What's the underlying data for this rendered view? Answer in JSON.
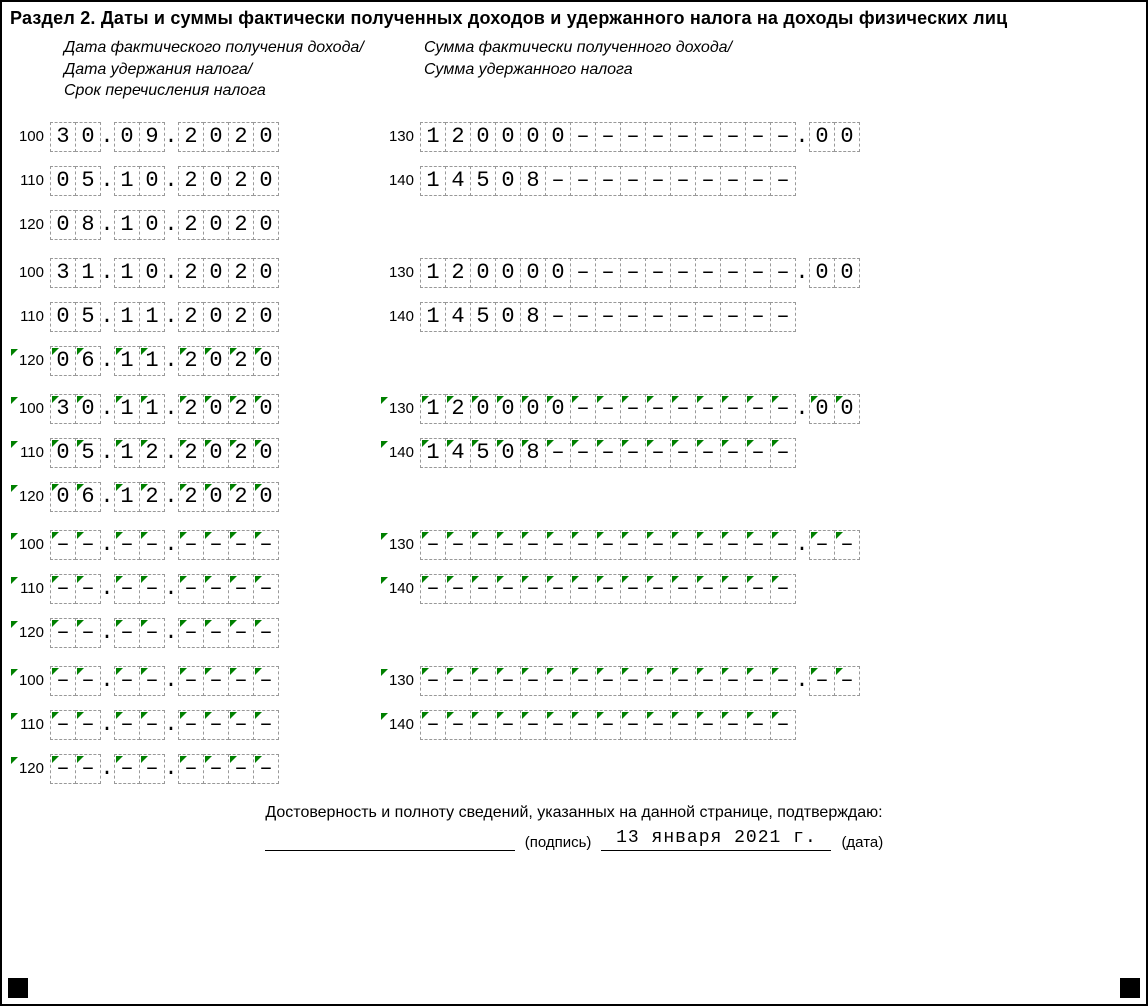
{
  "title": "Раздел 2. Даты и суммы фактически полученных доходов и удержанного налога на доходы физических лиц",
  "headers": {
    "left": "Дата фактического получения дохода/\nДата удержания налога/\nСрок перечисления налога",
    "right": "Сумма фактически полученного дохода/\nСумма удержанного налога"
  },
  "field_codes": {
    "income_date": "100",
    "withhold_date": "110",
    "transfer_date": "120",
    "income_amount": "130",
    "tax_amount": "140"
  },
  "layout": {
    "date_cells": {
      "day": 2,
      "month": 2,
      "year": 4
    },
    "amount_int_cells": 15,
    "amount_dec_cells": 2,
    "tax_cells": 15
  },
  "style": {
    "cell_border": "#999999",
    "marker_color": "#008000",
    "font_data": "Courier New",
    "dash_char": "–"
  },
  "groups": [
    {
      "marked": false,
      "r100": {
        "d": "30",
        "m": "09",
        "y": "2020"
      },
      "r110": {
        "d": "05",
        "m": "10",
        "y": "2020"
      },
      "r120": {
        "d": "08",
        "m": "10",
        "y": "2020"
      },
      "r130": {
        "int": "120000",
        "dec": "00"
      },
      "r140": {
        "val": "14508"
      }
    },
    {
      "marked": false,
      "r100": {
        "d": "31",
        "m": "10",
        "y": "2020"
      },
      "r110": {
        "d": "05",
        "m": "11",
        "y": "2020"
      },
      "r120": {
        "d": "06",
        "m": "11",
        "y": "2020",
        "marked": true
      },
      "r130": {
        "int": "120000",
        "dec": "00"
      },
      "r140": {
        "val": "14508"
      }
    },
    {
      "marked": true,
      "r100": {
        "d": "30",
        "m": "11",
        "y": "2020"
      },
      "r110": {
        "d": "05",
        "m": "12",
        "y": "2020"
      },
      "r120": {
        "d": "06",
        "m": "12",
        "y": "2020"
      },
      "r130": {
        "int": "120000",
        "dec": "00"
      },
      "r140": {
        "val": "14508"
      }
    },
    {
      "marked": true,
      "r100": {
        "d": "",
        "m": "",
        "y": ""
      },
      "r110": {
        "d": "",
        "m": "",
        "y": ""
      },
      "r120": {
        "d": "",
        "m": "",
        "y": ""
      },
      "r130": {
        "int": "",
        "dec": ""
      },
      "r140": {
        "val": ""
      }
    },
    {
      "marked": true,
      "r100": {
        "d": "",
        "m": "",
        "y": ""
      },
      "r110": {
        "d": "",
        "m": "",
        "y": ""
      },
      "r120": {
        "d": "",
        "m": "",
        "y": ""
      },
      "r130": {
        "int": "",
        "dec": ""
      },
      "r140": {
        "val": ""
      }
    }
  ],
  "footer": {
    "confirm": "Достоверность и полноту сведений, указанных на данной странице, подтверждаю:",
    "signature_label": "(подпись)",
    "date_value": "13 января 2021 г.",
    "date_label": "(дата)"
  }
}
